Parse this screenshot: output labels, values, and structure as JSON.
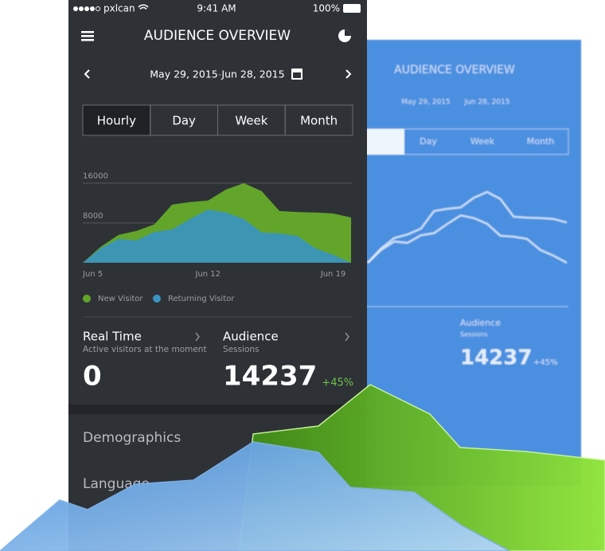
{
  "status_bar": {
    "carrier": "pxlcan",
    "time": "9:41 AM",
    "battery": "100%"
  },
  "header": {
    "title": "AUDIENCE OVERVIEW"
  },
  "date_range": {
    "start": "May 29, 2015",
    "separator": "-",
    "end": "Jun 28, 2015"
  },
  "tabs": [
    "Hourly",
    "Day",
    "Week",
    "Month"
  ],
  "chart": {
    "type": "area",
    "categories": [
      "Jun 5",
      null,
      null,
      null,
      null,
      null,
      null,
      "Jun 12",
      null,
      null,
      null,
      null,
      null,
      null,
      "Jun 19",
      null
    ],
    "series": [
      {
        "name": "New Visitor",
        "color": "#62a52a",
        "values": [
          0,
          3200,
          5600,
          6400,
          7700,
          11700,
          12200,
          12500,
          14700,
          16000,
          14400,
          10400,
          10200,
          10100,
          9900,
          9100
        ]
      },
      {
        "name": "Returning Visitor",
        "color": "#3a94c0",
        "values": [
          0,
          2900,
          4800,
          4500,
          6200,
          6700,
          8800,
          10700,
          10100,
          8800,
          6100,
          5900,
          5400,
          2900,
          1600,
          0
        ]
      }
    ],
    "ylim": [
      0,
      18000
    ],
    "yticks": [
      8000,
      16000
    ],
    "grid": true
  },
  "stats": [
    {
      "title": "Real Time",
      "subtitle": "Active visitors at the moment",
      "value": 0
    },
    {
      "title": "Audience",
      "subtitle": "Sessions",
      "value": 14237,
      "change": "+45%"
    }
  ],
  "menu": [
    "Demographics",
    "Language"
  ]
}
